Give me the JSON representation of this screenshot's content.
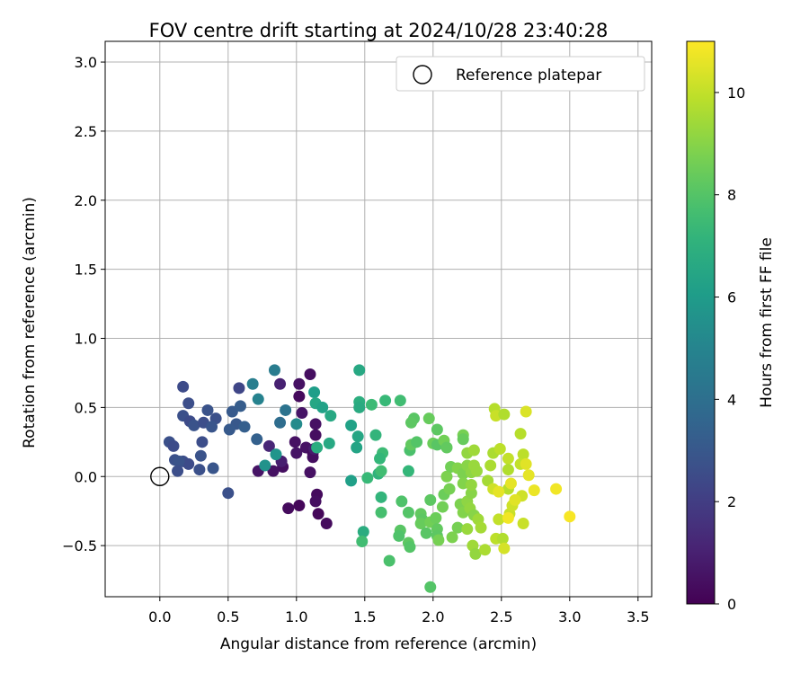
{
  "chart_data": {
    "type": "scatter",
    "title": "FOV centre drift starting at 2024/10/28 23:40:28",
    "xlabel": "Angular distance from reference (arcmin)",
    "ylabel": "Rotation from reference (arcmin)",
    "xlim": [
      -0.4,
      3.6
    ],
    "ylim": [
      -0.87,
      3.15
    ],
    "xticks": [
      0.0,
      0.5,
      1.0,
      1.5,
      2.0,
      2.5,
      3.0,
      3.5
    ],
    "xtick_labels": [
      "0.0",
      "0.5",
      "1.0",
      "1.5",
      "2.0",
      "2.5",
      "3.0",
      "3.5"
    ],
    "yticks": [
      -0.5,
      0.0,
      0.5,
      1.0,
      1.5,
      2.0,
      2.5,
      3.0
    ],
    "ytick_labels": [
      "−0.5",
      "0.0",
      "0.5",
      "1.0",
      "1.5",
      "2.0",
      "2.5",
      "3.0"
    ],
    "grid": true,
    "legend": {
      "placement": "top-right",
      "entries": [
        "Reference platepar"
      ]
    },
    "reference_point": {
      "x": 0.0,
      "y": 0.0
    },
    "colorbar": {
      "label": "Hours from first FF file",
      "range": [
        0,
        11
      ],
      "ticks": [
        0,
        2,
        4,
        6,
        8,
        10
      ],
      "tick_labels": [
        "0",
        "2",
        "4",
        "6",
        "8",
        "10"
      ],
      "colormap": "viridis"
    },
    "points": [
      {
        "x": 1.1,
        "y": 0.74,
        "h": 0.4
      },
      {
        "x": 1.02,
        "y": 0.67,
        "h": 0.5
      },
      {
        "x": 1.02,
        "y": 0.58,
        "h": 0.3
      },
      {
        "x": 1.04,
        "y": 0.46,
        "h": 0.6
      },
      {
        "x": 1.14,
        "y": 0.38,
        "h": 0.5
      },
      {
        "x": 1.14,
        "y": 0.3,
        "h": 0.4
      },
      {
        "x": 0.99,
        "y": 0.25,
        "h": 0.5
      },
      {
        "x": 1.0,
        "y": 0.17,
        "h": 0.6
      },
      {
        "x": 1.07,
        "y": 0.21,
        "h": 0.5
      },
      {
        "x": 1.12,
        "y": 0.17,
        "h": 0.3
      },
      {
        "x": 1.12,
        "y": 0.14,
        "h": 0.4
      },
      {
        "x": 1.1,
        "y": 0.03,
        "h": 0.5
      },
      {
        "x": 1.15,
        "y": -0.13,
        "h": 0.3
      },
      {
        "x": 1.14,
        "y": -0.18,
        "h": 0.4
      },
      {
        "x": 1.02,
        "y": -0.21,
        "h": 0.2
      },
      {
        "x": 0.94,
        "y": -0.23,
        "h": 0.3
      },
      {
        "x": 1.16,
        "y": -0.27,
        "h": 0.2
      },
      {
        "x": 1.22,
        "y": -0.34,
        "h": 0.3
      },
      {
        "x": 0.9,
        "y": 0.07,
        "h": 0.4
      },
      {
        "x": 0.83,
        "y": 0.04,
        "h": 0.5
      },
      {
        "x": 0.72,
        "y": 0.04,
        "h": 0.6
      },
      {
        "x": 0.88,
        "y": 0.67,
        "h": 1.0
      },
      {
        "x": 1.13,
        "y": 0.2,
        "h": 0.8
      },
      {
        "x": 0.89,
        "y": 0.11,
        "h": 0.9
      },
      {
        "x": 0.8,
        "y": 0.22,
        "h": 1.2
      },
      {
        "x": 0.58,
        "y": 0.64,
        "h": 2.3
      },
      {
        "x": 0.17,
        "y": 0.65,
        "h": 2.5
      },
      {
        "x": 0.21,
        "y": 0.53,
        "h": 2.6
      },
      {
        "x": 0.35,
        "y": 0.48,
        "h": 2.8
      },
      {
        "x": 0.17,
        "y": 0.44,
        "h": 2.7
      },
      {
        "x": 0.22,
        "y": 0.4,
        "h": 2.5
      },
      {
        "x": 0.25,
        "y": 0.37,
        "h": 2.8
      },
      {
        "x": 0.32,
        "y": 0.39,
        "h": 2.6
      },
      {
        "x": 0.41,
        "y": 0.42,
        "h": 2.7
      },
      {
        "x": 0.38,
        "y": 0.36,
        "h": 2.9
      },
      {
        "x": 0.31,
        "y": 0.25,
        "h": 2.6
      },
      {
        "x": 0.07,
        "y": 0.25,
        "h": 2.7
      },
      {
        "x": 0.1,
        "y": 0.22,
        "h": 2.5
      },
      {
        "x": 0.3,
        "y": 0.15,
        "h": 2.8
      },
      {
        "x": 0.17,
        "y": 0.11,
        "h": 2.6
      },
      {
        "x": 0.11,
        "y": 0.12,
        "h": 2.7
      },
      {
        "x": 0.21,
        "y": 0.09,
        "h": 2.5
      },
      {
        "x": 0.14,
        "y": 0.11,
        "h": 2.8
      },
      {
        "x": 0.13,
        "y": 0.04,
        "h": 2.6
      },
      {
        "x": 0.29,
        "y": 0.05,
        "h": 2.7
      },
      {
        "x": 0.39,
        "y": 0.06,
        "h": 2.9
      },
      {
        "x": 0.5,
        "y": -0.12,
        "h": 2.7
      },
      {
        "x": 0.53,
        "y": 0.47,
        "h": 3.1
      },
      {
        "x": 0.59,
        "y": 0.51,
        "h": 3.2
      },
      {
        "x": 0.56,
        "y": 0.38,
        "h": 3.0
      },
      {
        "x": 0.62,
        "y": 0.36,
        "h": 3.3
      },
      {
        "x": 0.51,
        "y": 0.34,
        "h": 3.1
      },
      {
        "x": 0.71,
        "y": 0.27,
        "h": 3.4
      },
      {
        "x": 0.88,
        "y": 0.39,
        "h": 3.9
      },
      {
        "x": 0.92,
        "y": 0.48,
        "h": 4.2
      },
      {
        "x": 0.84,
        "y": 0.77,
        "h": 4.6
      },
      {
        "x": 0.68,
        "y": 0.67,
        "h": 4.7
      },
      {
        "x": 0.72,
        "y": 0.56,
        "h": 4.9
      },
      {
        "x": 0.77,
        "y": 0.08,
        "h": 5.6
      },
      {
        "x": 0.85,
        "y": 0.16,
        "h": 5.7
      },
      {
        "x": 1.0,
        "y": 0.38,
        "h": 5.3
      },
      {
        "x": 1.13,
        "y": 0.61,
        "h": 6.1
      },
      {
        "x": 1.14,
        "y": 0.53,
        "h": 6.5
      },
      {
        "x": 1.19,
        "y": 0.5,
        "h": 6.3
      },
      {
        "x": 1.25,
        "y": 0.44,
        "h": 6.6
      },
      {
        "x": 1.24,
        "y": 0.24,
        "h": 6.6
      },
      {
        "x": 1.15,
        "y": 0.21,
        "h": 6.8
      },
      {
        "x": 1.4,
        "y": 0.37,
        "h": 6.3
      },
      {
        "x": 1.46,
        "y": 0.77,
        "h": 6.6
      },
      {
        "x": 1.46,
        "y": 0.54,
        "h": 6.9
      },
      {
        "x": 1.46,
        "y": 0.5,
        "h": 6.7
      },
      {
        "x": 1.45,
        "y": 0.29,
        "h": 6.5
      },
      {
        "x": 1.44,
        "y": 0.21,
        "h": 6.4
      },
      {
        "x": 1.4,
        "y": -0.03,
        "h": 6.2
      },
      {
        "x": 1.49,
        "y": -0.4,
        "h": 6.8
      },
      {
        "x": 1.55,
        "y": 0.52,
        "h": 7.5
      },
      {
        "x": 1.65,
        "y": 0.55,
        "h": 7.4
      },
      {
        "x": 1.76,
        "y": 0.55,
        "h": 7.6
      },
      {
        "x": 1.58,
        "y": 0.3,
        "h": 7.2
      },
      {
        "x": 1.63,
        "y": 0.17,
        "h": 7.5
      },
      {
        "x": 1.61,
        "y": 0.13,
        "h": 7.3
      },
      {
        "x": 1.52,
        "y": -0.01,
        "h": 7.4
      },
      {
        "x": 1.6,
        "y": 0.02,
        "h": 7.1
      },
      {
        "x": 1.62,
        "y": 0.04,
        "h": 7.6
      },
      {
        "x": 1.62,
        "y": -0.15,
        "h": 7.2
      },
      {
        "x": 1.62,
        "y": -0.26,
        "h": 7.7
      },
      {
        "x": 1.48,
        "y": -0.47,
        "h": 7.6
      },
      {
        "x": 1.68,
        "y": -0.61,
        "h": 7.8
      },
      {
        "x": 1.82,
        "y": 0.04,
        "h": 7.3
      },
      {
        "x": 1.83,
        "y": 0.19,
        "h": 7.8
      },
      {
        "x": 1.86,
        "y": 0.42,
        "h": 8.1
      },
      {
        "x": 1.84,
        "y": 0.39,
        "h": 8.2
      },
      {
        "x": 1.84,
        "y": 0.23,
        "h": 8.3
      },
      {
        "x": 1.88,
        "y": 0.25,
        "h": 8.0
      },
      {
        "x": 1.97,
        "y": 0.42,
        "h": 8.4
      },
      {
        "x": 2.03,
        "y": 0.34,
        "h": 8.2
      },
      {
        "x": 2.0,
        "y": 0.24,
        "h": 8.5
      },
      {
        "x": 2.03,
        "y": 0.23,
        "h": 8.1
      },
      {
        "x": 2.08,
        "y": 0.26,
        "h": 8.6
      },
      {
        "x": 2.1,
        "y": 0.21,
        "h": 8.3
      },
      {
        "x": 2.22,
        "y": 0.3,
        "h": 8.7
      },
      {
        "x": 2.22,
        "y": 0.27,
        "h": 8.4
      },
      {
        "x": 1.77,
        "y": -0.18,
        "h": 7.9
      },
      {
        "x": 1.82,
        "y": -0.26,
        "h": 8.0
      },
      {
        "x": 1.76,
        "y": -0.39,
        "h": 8.1
      },
      {
        "x": 1.75,
        "y": -0.43,
        "h": 7.9
      },
      {
        "x": 1.82,
        "y": -0.48,
        "h": 8.2
      },
      {
        "x": 1.83,
        "y": -0.51,
        "h": 8.0
      },
      {
        "x": 1.91,
        "y": -0.27,
        "h": 8.3
      },
      {
        "x": 1.92,
        "y": -0.31,
        "h": 8.2
      },
      {
        "x": 1.91,
        "y": -0.34,
        "h": 8.4
      },
      {
        "x": 1.95,
        "y": -0.41,
        "h": 8.1
      },
      {
        "x": 1.98,
        "y": -0.33,
        "h": 8.6
      },
      {
        "x": 2.02,
        "y": -0.3,
        "h": 8.5
      },
      {
        "x": 2.03,
        "y": -0.38,
        "h": 8.3
      },
      {
        "x": 2.03,
        "y": -0.43,
        "h": 8.2
      },
      {
        "x": 2.04,
        "y": -0.46,
        "h": 8.7
      },
      {
        "x": 1.98,
        "y": -0.8,
        "h": 8.0
      },
      {
        "x": 1.98,
        "y": -0.17,
        "h": 8.2
      },
      {
        "x": 2.07,
        "y": -0.22,
        "h": 8.6
      },
      {
        "x": 2.08,
        "y": -0.13,
        "h": 8.5
      },
      {
        "x": 2.12,
        "y": -0.09,
        "h": 8.7
      },
      {
        "x": 2.1,
        "y": 0.0,
        "h": 8.8
      },
      {
        "x": 2.13,
        "y": 0.07,
        "h": 8.6
      },
      {
        "x": 2.18,
        "y": 0.06,
        "h": 8.9
      },
      {
        "x": 2.22,
        "y": 0.02,
        "h": 8.8
      },
      {
        "x": 2.25,
        "y": 0.08,
        "h": 9.0
      },
      {
        "x": 2.2,
        "y": -0.2,
        "h": 8.8
      },
      {
        "x": 2.22,
        "y": -0.26,
        "h": 8.9
      },
      {
        "x": 2.25,
        "y": -0.18,
        "h": 9.1
      },
      {
        "x": 2.28,
        "y": -0.12,
        "h": 9.0
      },
      {
        "x": 2.22,
        "y": -0.05,
        "h": 8.9
      },
      {
        "x": 2.18,
        "y": -0.37,
        "h": 8.7
      },
      {
        "x": 2.14,
        "y": -0.44,
        "h": 8.8
      },
      {
        "x": 2.28,
        "y": -0.06,
        "h": 9.2
      },
      {
        "x": 2.28,
        "y": 0.03,
        "h": 9.1
      },
      {
        "x": 2.3,
        "y": 0.08,
        "h": 9.3
      },
      {
        "x": 2.27,
        "y": -0.23,
        "h": 9.2
      },
      {
        "x": 2.3,
        "y": -0.28,
        "h": 9.0
      },
      {
        "x": 2.25,
        "y": -0.38,
        "h": 9.3
      },
      {
        "x": 2.29,
        "y": -0.5,
        "h": 9.4
      },
      {
        "x": 2.31,
        "y": -0.56,
        "h": 9.2
      },
      {
        "x": 2.33,
        "y": -0.31,
        "h": 9.4
      },
      {
        "x": 2.35,
        "y": -0.37,
        "h": 9.5
      },
      {
        "x": 2.38,
        "y": -0.53,
        "h": 9.6
      },
      {
        "x": 2.25,
        "y": 0.17,
        "h": 9.2
      },
      {
        "x": 2.3,
        "y": 0.19,
        "h": 9.4
      },
      {
        "x": 2.32,
        "y": 0.04,
        "h": 9.3
      },
      {
        "x": 2.4,
        "y": -0.03,
        "h": 9.5
      },
      {
        "x": 2.42,
        "y": 0.08,
        "h": 9.6
      },
      {
        "x": 2.44,
        "y": 0.17,
        "h": 9.6
      },
      {
        "x": 2.45,
        "y": 0.49,
        "h": 9.8
      },
      {
        "x": 2.46,
        "y": 0.44,
        "h": 10.1
      },
      {
        "x": 2.52,
        "y": 0.45,
        "h": 9.7
      },
      {
        "x": 2.49,
        "y": 0.2,
        "h": 9.9
      },
      {
        "x": 2.55,
        "y": 0.13,
        "h": 10.0
      },
      {
        "x": 2.55,
        "y": 0.05,
        "h": 9.7
      },
      {
        "x": 2.55,
        "y": -0.09,
        "h": 9.8
      },
      {
        "x": 2.44,
        "y": -0.09,
        "h": 10.2
      },
      {
        "x": 2.48,
        "y": -0.31,
        "h": 10.0
      },
      {
        "x": 2.46,
        "y": -0.45,
        "h": 9.9
      },
      {
        "x": 2.51,
        "y": -0.45,
        "h": 9.7
      },
      {
        "x": 2.52,
        "y": -0.52,
        "h": 10.3
      },
      {
        "x": 2.56,
        "y": -0.27,
        "h": 10.1
      },
      {
        "x": 2.58,
        "y": -0.21,
        "h": 10.2
      },
      {
        "x": 2.64,
        "y": 0.31,
        "h": 9.8
      },
      {
        "x": 2.66,
        "y": 0.16,
        "h": 9.9
      },
      {
        "x": 2.64,
        "y": 0.09,
        "h": 10.0
      },
      {
        "x": 2.65,
        "y": -0.14,
        "h": 10.2
      },
      {
        "x": 2.66,
        "y": -0.34,
        "h": 10.1
      },
      {
        "x": 2.68,
        "y": 0.47,
        "h": 10.4
      },
      {
        "x": 2.68,
        "y": 0.09,
        "h": 10.5
      },
      {
        "x": 2.7,
        "y": 0.01,
        "h": 10.6
      },
      {
        "x": 2.74,
        "y": -0.1,
        "h": 10.7
      },
      {
        "x": 2.6,
        "y": -0.17,
        "h": 10.5
      },
      {
        "x": 2.55,
        "y": -0.3,
        "h": 10.8
      },
      {
        "x": 2.57,
        "y": -0.05,
        "h": 10.6
      },
      {
        "x": 2.9,
        "y": -0.09,
        "h": 10.8
      },
      {
        "x": 3.0,
        "y": -0.29,
        "h": 10.9
      },
      {
        "x": 2.48,
        "y": -0.11,
        "h": 10.6
      }
    ]
  }
}
